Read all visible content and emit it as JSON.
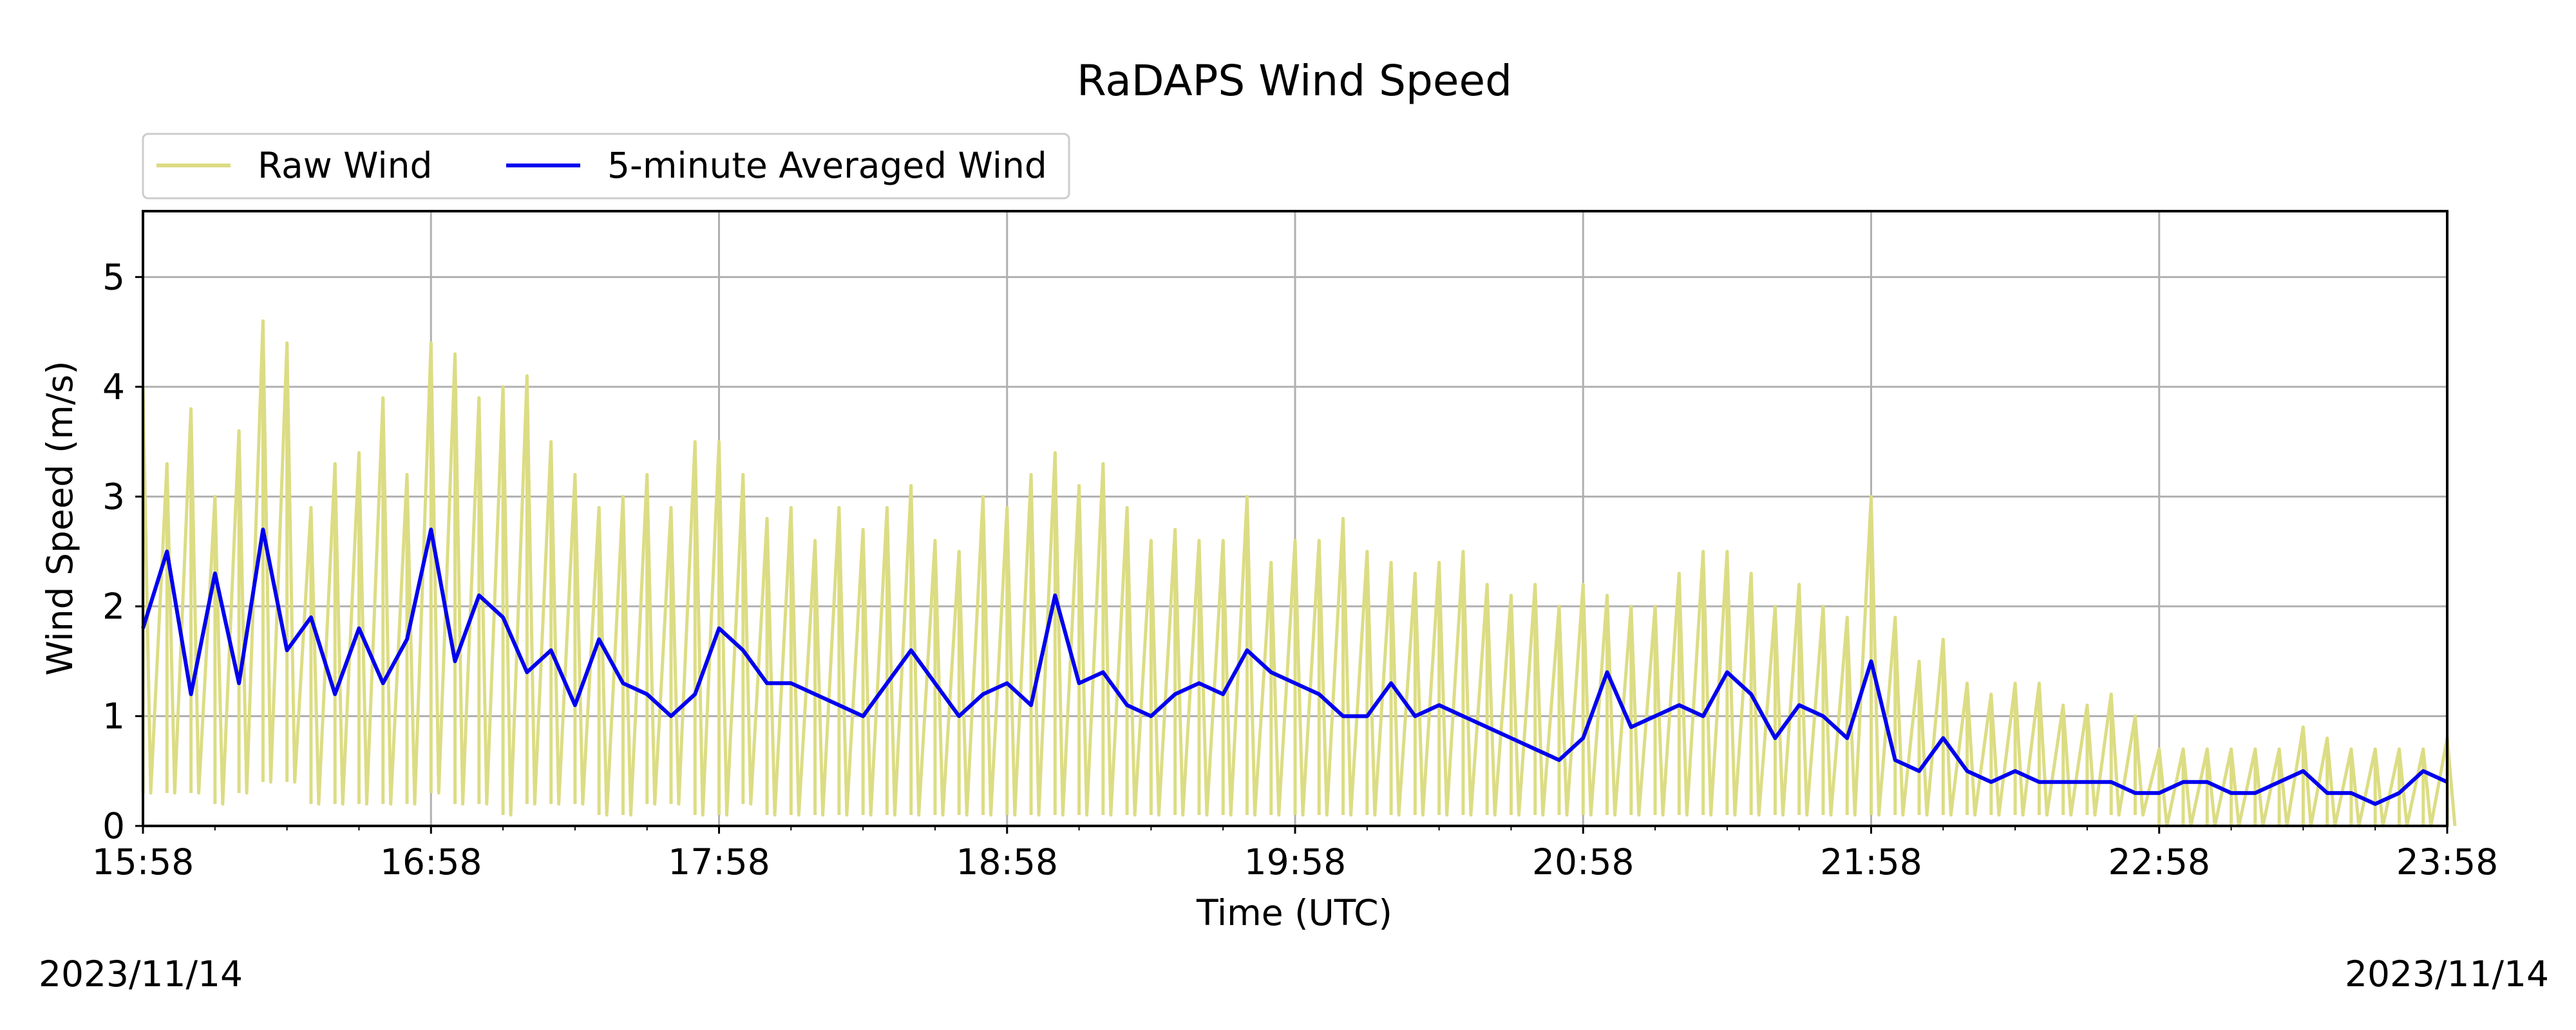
{
  "chart_data": {
    "type": "line",
    "title": "RaDAPS Wind Speed",
    "xlabel": "Time (UTC)",
    "ylabel": "Wind Speed (m/s)",
    "x_tick_labels": [
      "15:58",
      "16:58",
      "17:58",
      "18:58",
      "19:58",
      "20:58",
      "21:58",
      "22:58",
      "23:58"
    ],
    "x_range": [
      "15:58",
      "23:58"
    ],
    "ylim": [
      0,
      5.6
    ],
    "y_ticks": [
      0,
      1,
      2,
      3,
      4,
      5
    ],
    "grid": true,
    "legend_position": "top-left, above plot",
    "date_left": "2023/11/14",
    "date_right": "2023/11/14",
    "series": [
      {
        "name": "Raw Wind",
        "color": "#dcdc84",
        "x": [
          "15:58",
          "16:03",
          "16:08",
          "16:13",
          "16:18",
          "16:23",
          "16:28",
          "16:33",
          "16:38",
          "16:43",
          "16:48",
          "16:53",
          "16:58",
          "17:03",
          "17:08",
          "17:13",
          "17:18",
          "17:23",
          "17:28",
          "17:33",
          "17:38",
          "17:43",
          "17:48",
          "17:53",
          "17:58",
          "18:03",
          "18:08",
          "18:13",
          "18:18",
          "18:23",
          "18:28",
          "18:33",
          "18:38",
          "18:43",
          "18:48",
          "18:53",
          "18:58",
          "19:03",
          "19:08",
          "19:13",
          "19:18",
          "19:23",
          "19:28",
          "19:33",
          "19:38",
          "19:43",
          "19:48",
          "19:53",
          "19:58",
          "20:03",
          "20:08",
          "20:13",
          "20:18",
          "20:23",
          "20:28",
          "20:33",
          "20:38",
          "20:43",
          "20:48",
          "20:53",
          "20:58",
          "21:03",
          "21:08",
          "21:13",
          "21:18",
          "21:23",
          "21:28",
          "21:33",
          "21:38",
          "21:43",
          "21:48",
          "21:53",
          "21:58",
          "22:03",
          "22:08",
          "22:13",
          "22:18",
          "22:23",
          "22:28",
          "22:33",
          "22:38",
          "22:43",
          "22:48",
          "22:53",
          "22:58",
          "23:03",
          "23:08",
          "23:13",
          "23:18",
          "23:23",
          "23:28",
          "23:33",
          "23:38",
          "23:43",
          "23:48",
          "23:53",
          "23:58"
        ],
        "high": [
          4.0,
          3.3,
          3.8,
          3.0,
          3.6,
          4.6,
          4.4,
          2.9,
          3.3,
          3.4,
          3.9,
          3.2,
          4.4,
          4.3,
          3.9,
          4.0,
          4.1,
          3.5,
          3.2,
          2.9,
          3.0,
          3.2,
          2.9,
          3.5,
          3.5,
          3.2,
          2.8,
          2.9,
          2.6,
          2.9,
          2.7,
          2.9,
          3.1,
          2.6,
          2.5,
          3.0,
          2.9,
          3.2,
          3.4,
          3.1,
          3.3,
          2.9,
          2.6,
          2.7,
          2.6,
          2.6,
          3.0,
          2.4,
          2.6,
          2.6,
          2.8,
          2.5,
          2.4,
          2.3,
          2.4,
          2.5,
          2.2,
          2.1,
          2.2,
          2.0,
          2.2,
          2.1,
          2.0,
          2.0,
          2.3,
          2.5,
          2.5,
          2.3,
          2.0,
          2.2,
          2.0,
          1.9,
          3.0,
          1.9,
          1.5,
          1.7,
          1.3,
          1.2,
          1.3,
          1.3,
          1.1,
          1.1,
          1.2,
          1.0,
          0.7,
          0.7,
          0.7,
          0.7,
          0.7,
          0.7,
          0.9,
          0.8,
          0.7,
          0.7,
          0.7,
          0.7,
          0.8
        ],
        "low": [
          0.3,
          0.3,
          0.3,
          0.2,
          0.3,
          0.4,
          0.4,
          0.2,
          0.2,
          0.2,
          0.2,
          0.2,
          0.3,
          0.2,
          0.2,
          0.1,
          0.2,
          0.2,
          0.2,
          0.1,
          0.1,
          0.2,
          0.2,
          0.1,
          0.1,
          0.2,
          0.1,
          0.1,
          0.1,
          0.1,
          0.1,
          0.1,
          0.1,
          0.1,
          0.1,
          0.1,
          0.1,
          0.1,
          0.1,
          0.1,
          0.1,
          0.1,
          0.1,
          0.1,
          0.1,
          0.1,
          0.1,
          0.1,
          0.1,
          0.1,
          0.1,
          0.1,
          0.1,
          0.1,
          0.1,
          0.1,
          0.1,
          0.1,
          0.1,
          0.1,
          0.1,
          0.1,
          0.1,
          0.1,
          0.1,
          0.1,
          0.1,
          0.1,
          0.1,
          0.1,
          0.1,
          0.1,
          0.1,
          0.1,
          0.1,
          0.1,
          0.1,
          0.1,
          0.1,
          0.1,
          0.1,
          0.1,
          0.1,
          0.1,
          0.0,
          0.0,
          0.0,
          0.0,
          0.0,
          0.0,
          0.0,
          0.0,
          0.0,
          0.0,
          0.0,
          0.0,
          0.0
        ]
      },
      {
        "name": "5-minute Averaged Wind",
        "color": "#0000ee",
        "x": [
          "15:58",
          "16:03",
          "16:08",
          "16:13",
          "16:18",
          "16:23",
          "16:28",
          "16:33",
          "16:38",
          "16:43",
          "16:48",
          "16:53",
          "16:58",
          "17:03",
          "17:08",
          "17:13",
          "17:18",
          "17:23",
          "17:28",
          "17:33",
          "17:38",
          "17:43",
          "17:48",
          "17:53",
          "17:58",
          "18:03",
          "18:08",
          "18:13",
          "18:18",
          "18:23",
          "18:28",
          "18:33",
          "18:38",
          "18:43",
          "18:48",
          "18:53",
          "18:58",
          "19:03",
          "19:08",
          "19:13",
          "19:18",
          "19:23",
          "19:28",
          "19:33",
          "19:38",
          "19:43",
          "19:48",
          "19:53",
          "19:58",
          "20:03",
          "20:08",
          "20:13",
          "20:18",
          "20:23",
          "20:28",
          "20:33",
          "20:38",
          "20:43",
          "20:48",
          "20:53",
          "20:58",
          "21:03",
          "21:08",
          "21:13",
          "21:18",
          "21:23",
          "21:28",
          "21:33",
          "21:38",
          "21:43",
          "21:48",
          "21:53",
          "21:58",
          "22:03",
          "22:08",
          "22:13",
          "22:18",
          "22:23",
          "22:28",
          "22:33",
          "22:38",
          "22:43",
          "22:48",
          "22:53",
          "22:58",
          "23:03",
          "23:08",
          "23:13",
          "23:18",
          "23:23",
          "23:28",
          "23:33",
          "23:38",
          "23:43",
          "23:48",
          "23:53",
          "23:58"
        ],
        "y": [
          1.8,
          2.5,
          1.2,
          2.3,
          1.3,
          2.7,
          1.6,
          1.9,
          1.2,
          1.8,
          1.3,
          1.7,
          2.7,
          1.5,
          2.1,
          1.9,
          1.4,
          1.6,
          1.1,
          1.7,
          1.3,
          1.2,
          1.0,
          1.2,
          1.8,
          1.6,
          1.3,
          1.3,
          1.2,
          1.1,
          1.0,
          1.3,
          1.6,
          1.3,
          1.0,
          1.2,
          1.3,
          1.1,
          2.1,
          1.3,
          1.4,
          1.1,
          1.0,
          1.2,
          1.3,
          1.2,
          1.6,
          1.4,
          1.3,
          1.2,
          1.0,
          1.0,
          1.3,
          1.0,
          1.1,
          1.0,
          0.9,
          0.8,
          0.7,
          0.6,
          0.8,
          1.4,
          0.9,
          1.0,
          1.1,
          1.0,
          1.4,
          1.2,
          0.8,
          1.1,
          1.0,
          0.8,
          1.5,
          0.6,
          0.5,
          0.8,
          0.5,
          0.4,
          0.5,
          0.4,
          0.4,
          0.4,
          0.4,
          0.3,
          0.3,
          0.4,
          0.4,
          0.3,
          0.3,
          0.4,
          0.5,
          0.3,
          0.3,
          0.2,
          0.3,
          0.5,
          0.4
        ]
      }
    ]
  }
}
